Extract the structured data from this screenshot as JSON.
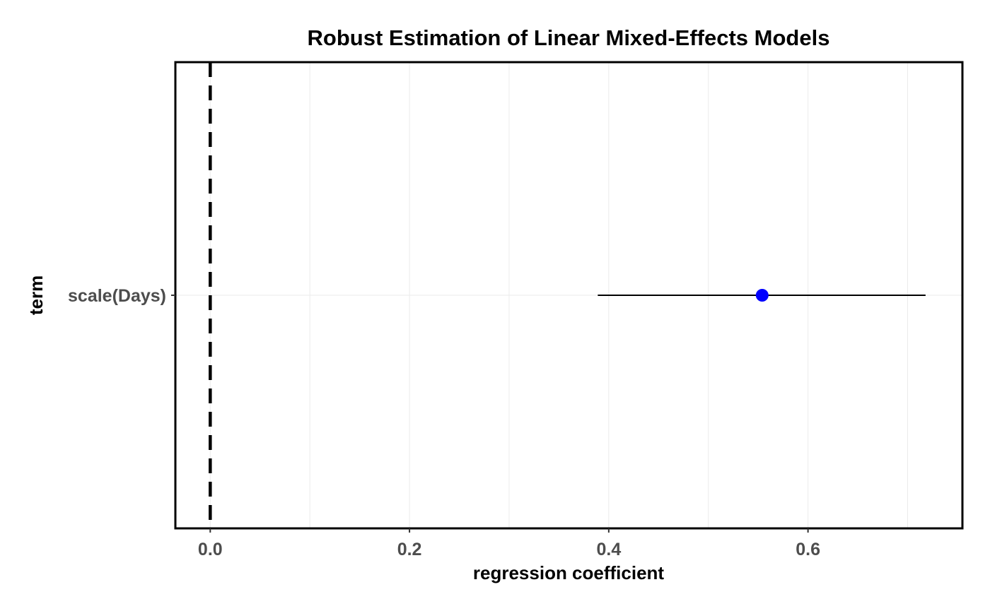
{
  "chart_data": {
    "type": "scatter",
    "title": "Robust Estimation of Linear Mixed-Effects Models",
    "xlabel": "regression coefficient",
    "ylabel": "term",
    "xlim": [
      -0.035,
      0.755
    ],
    "x_ticks": [
      0.0,
      0.2,
      0.4,
      0.6
    ],
    "x_tick_labels": [
      "0.0",
      "0.2",
      "0.4",
      "0.6"
    ],
    "categories": [
      "scale(Days)"
    ],
    "series": [
      {
        "estimates": [
          0.554
        ],
        "conf_low": [
          0.389
        ],
        "conf_high": [
          0.718
        ]
      }
    ],
    "reference_line": {
      "x": 0,
      "style": "dashed"
    },
    "grid": true,
    "colors": {
      "point": "#0000ff",
      "interval": "#000000",
      "reference_line": "#000000",
      "grid": "#ebebeb",
      "panel_border": "#000000",
      "tick_label": "#4d4d4d"
    }
  }
}
